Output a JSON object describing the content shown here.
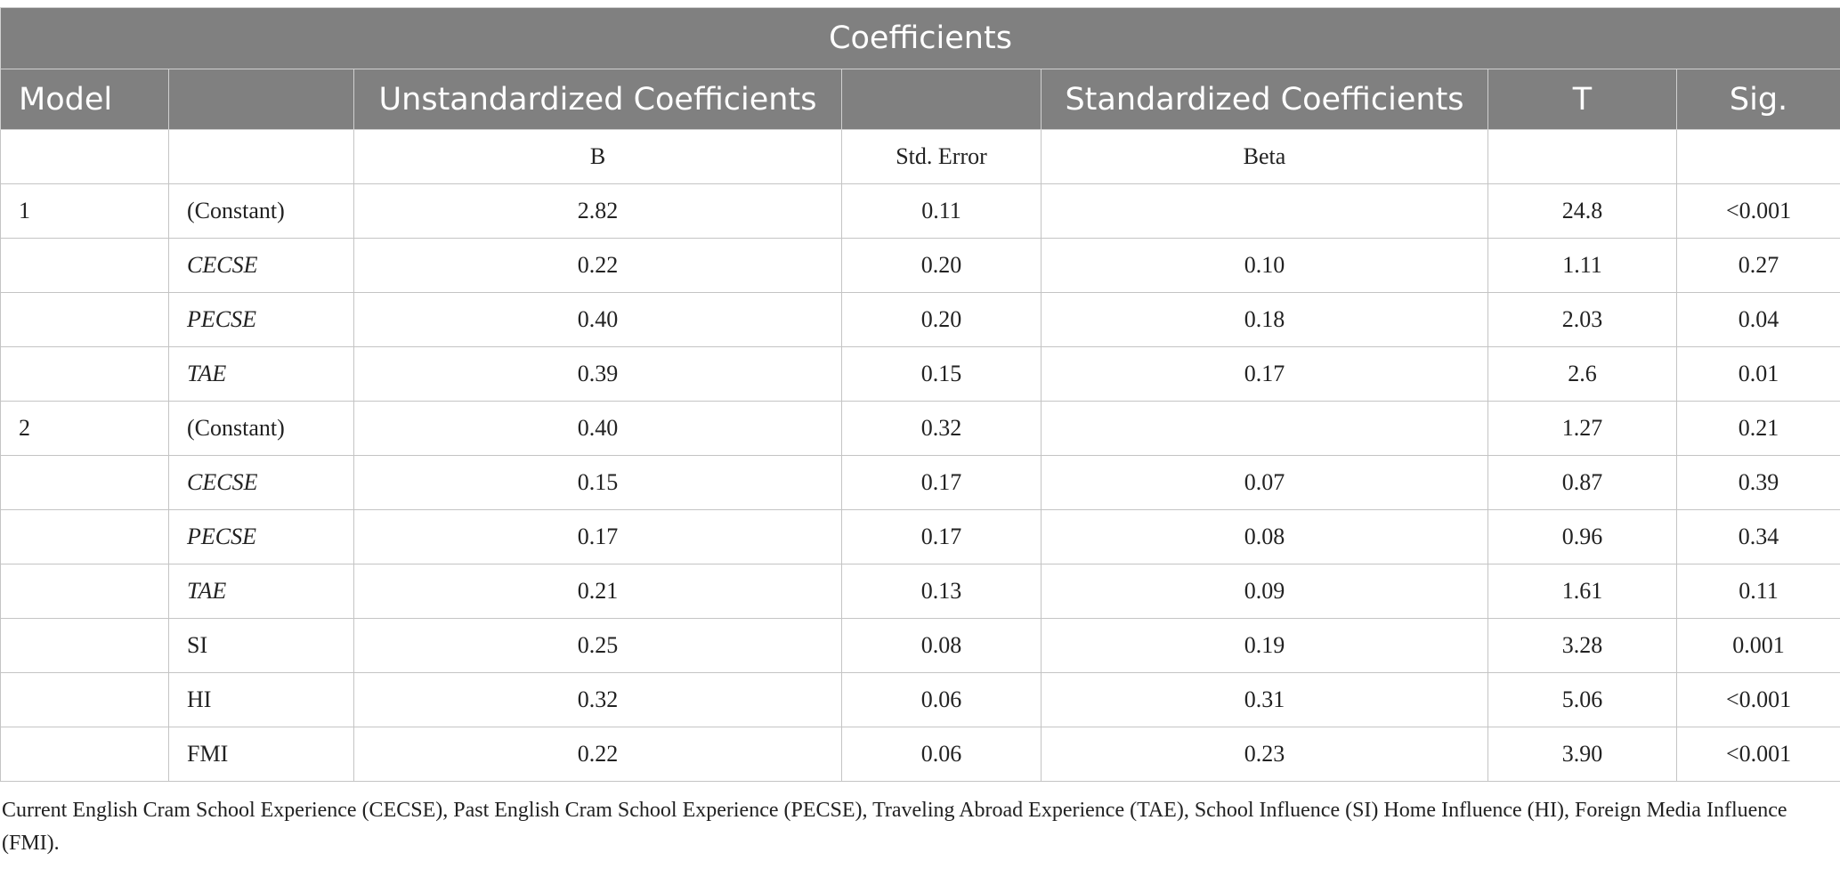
{
  "table": {
    "title": "Coefficients",
    "header": {
      "model": "Model",
      "predictor": "",
      "unstandardized": "Unstandardized Coefficients",
      "unstandardized_blank": "",
      "standardized": "Standardized Coefficients",
      "t": "T",
      "sig": "Sig."
    },
    "subheader": {
      "model": "",
      "predictor": "",
      "b": "B",
      "std_error": "Std. Error",
      "beta": "Beta",
      "t": "",
      "sig": ""
    },
    "rows": [
      {
        "model": "1",
        "predictor": "(Constant)",
        "italic": false,
        "b": "2.82",
        "se": "0.11",
        "beta": "",
        "t": "24.8",
        "sig": "<0.001"
      },
      {
        "model": "",
        "predictor": "CECSE",
        "italic": true,
        "b": "0.22",
        "se": "0.20",
        "beta": "0.10",
        "t": "1.11",
        "sig": "0.27"
      },
      {
        "model": "",
        "predictor": "PECSE",
        "italic": true,
        "b": "0.40",
        "se": "0.20",
        "beta": "0.18",
        "t": "2.03",
        "sig": "0.04"
      },
      {
        "model": "",
        "predictor": "TAE",
        "italic": true,
        "b": "0.39",
        "se": "0.15",
        "beta": "0.17",
        "t": "2.6",
        "sig": "0.01"
      },
      {
        "model": "2",
        "predictor": "(Constant)",
        "italic": false,
        "b": "0.40",
        "se": "0.32",
        "beta": "",
        "t": "1.27",
        "sig": "0.21"
      },
      {
        "model": "",
        "predictor": "CECSE",
        "italic": true,
        "b": "0.15",
        "se": "0.17",
        "beta": "0.07",
        "t": "0.87",
        "sig": "0.39"
      },
      {
        "model": "",
        "predictor": "PECSE",
        "italic": true,
        "b": "0.17",
        "se": "0.17",
        "beta": "0.08",
        "t": "0.96",
        "sig": "0.34"
      },
      {
        "model": "",
        "predictor": "TAE",
        "italic": true,
        "b": "0.21",
        "se": "0.13",
        "beta": "0.09",
        "t": "1.61",
        "sig": "0.11"
      },
      {
        "model": "",
        "predictor": "SI",
        "italic": false,
        "b": "0.25",
        "se": "0.08",
        "beta": "0.19",
        "t": "3.28",
        "sig": "0.001"
      },
      {
        "model": "",
        "predictor": "HI",
        "italic": false,
        "b": "0.32",
        "se": "0.06",
        "beta": "0.31",
        "t": "5.06",
        "sig": "<0.001"
      },
      {
        "model": "",
        "predictor": "FMI",
        "italic": false,
        "b": "0.22",
        "se": "0.06",
        "beta": "0.23",
        "t": "3.90",
        "sig": "<0.001"
      }
    ]
  },
  "note": "Current English Cram School Experience (CECSE), Past English Cram School Experience (PECSE), Traveling Abroad Experience (TAE), School Influence (SI) Home Influence (HI), Foreign Media Influence (FMI)."
}
